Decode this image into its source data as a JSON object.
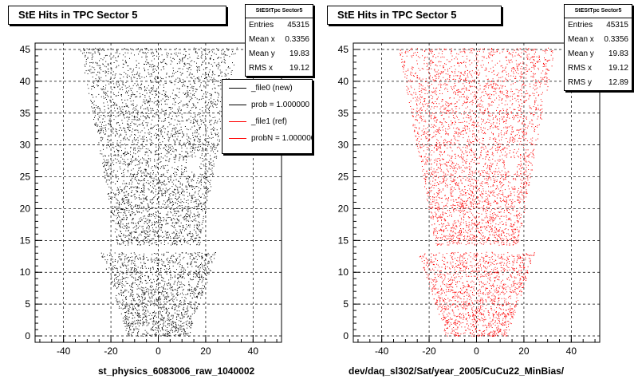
{
  "chart_data": [
    {
      "type": "scatter",
      "title": "StE Hits in TPC Sector 5",
      "xlabel": "st_physics_6083006_raw_1040002",
      "ylabel": "",
      "xlim": [
        -52,
        52
      ],
      "ylim": [
        -1,
        46
      ],
      "x_ticks": [
        -40,
        -20,
        0,
        20,
        40
      ],
      "y_ticks": [
        0,
        5,
        10,
        15,
        20,
        25,
        30,
        35,
        40,
        45
      ],
      "grid": true,
      "marker_color": "#000000",
      "region": "sector shape: pad rows x in [-33,33] at y=45 narrowing to [-15,15] at y=0, gap near y=14",
      "stats": {
        "title": "StEStTpc Sector5",
        "rows": [
          {
            "label": "Entries",
            "value": "45315"
          },
          {
            "label": "Mean x",
            "value": "0.3356"
          },
          {
            "label": "Mean y",
            "value": "19.83"
          },
          {
            "label": "RMS x",
            "value": "19.12"
          }
        ]
      },
      "legend": {
        "placement": "top-right",
        "entries": [
          {
            "label": "_file0 (new)",
            "color": "#000000"
          },
          {
            "label": "prob = 1.000000",
            "color": "#000000"
          },
          {
            "label": "_file1 (ref)",
            "color": "#ff0000"
          },
          {
            "label": "probN = 1.000000",
            "color": "#ff0000"
          }
        ]
      }
    },
    {
      "type": "scatter",
      "title": "StE Hits in TPC Sector 5",
      "xlabel": "dev/daq_sl302/Sat/year_2005/CuCu22_MinBias/",
      "ylabel": "",
      "xlim": [
        -52,
        52
      ],
      "ylim": [
        -1,
        46
      ],
      "x_ticks": [
        -40,
        -20,
        0,
        20,
        40
      ],
      "y_ticks": [
        0,
        5,
        10,
        15,
        20,
        25,
        30,
        35,
        40,
        45
      ],
      "grid": true,
      "marker_color": "#ff0000",
      "stats": {
        "title": "StEStTpc Sector5",
        "rows": [
          {
            "label": "Entries",
            "value": "45315"
          },
          {
            "label": "Mean x",
            "value": "0.3356"
          },
          {
            "label": "Mean y",
            "value": "19.83"
          },
          {
            "label": "RMS x",
            "value": "19.12"
          },
          {
            "label": "RMS y",
            "value": "12.89"
          }
        ]
      }
    }
  ]
}
